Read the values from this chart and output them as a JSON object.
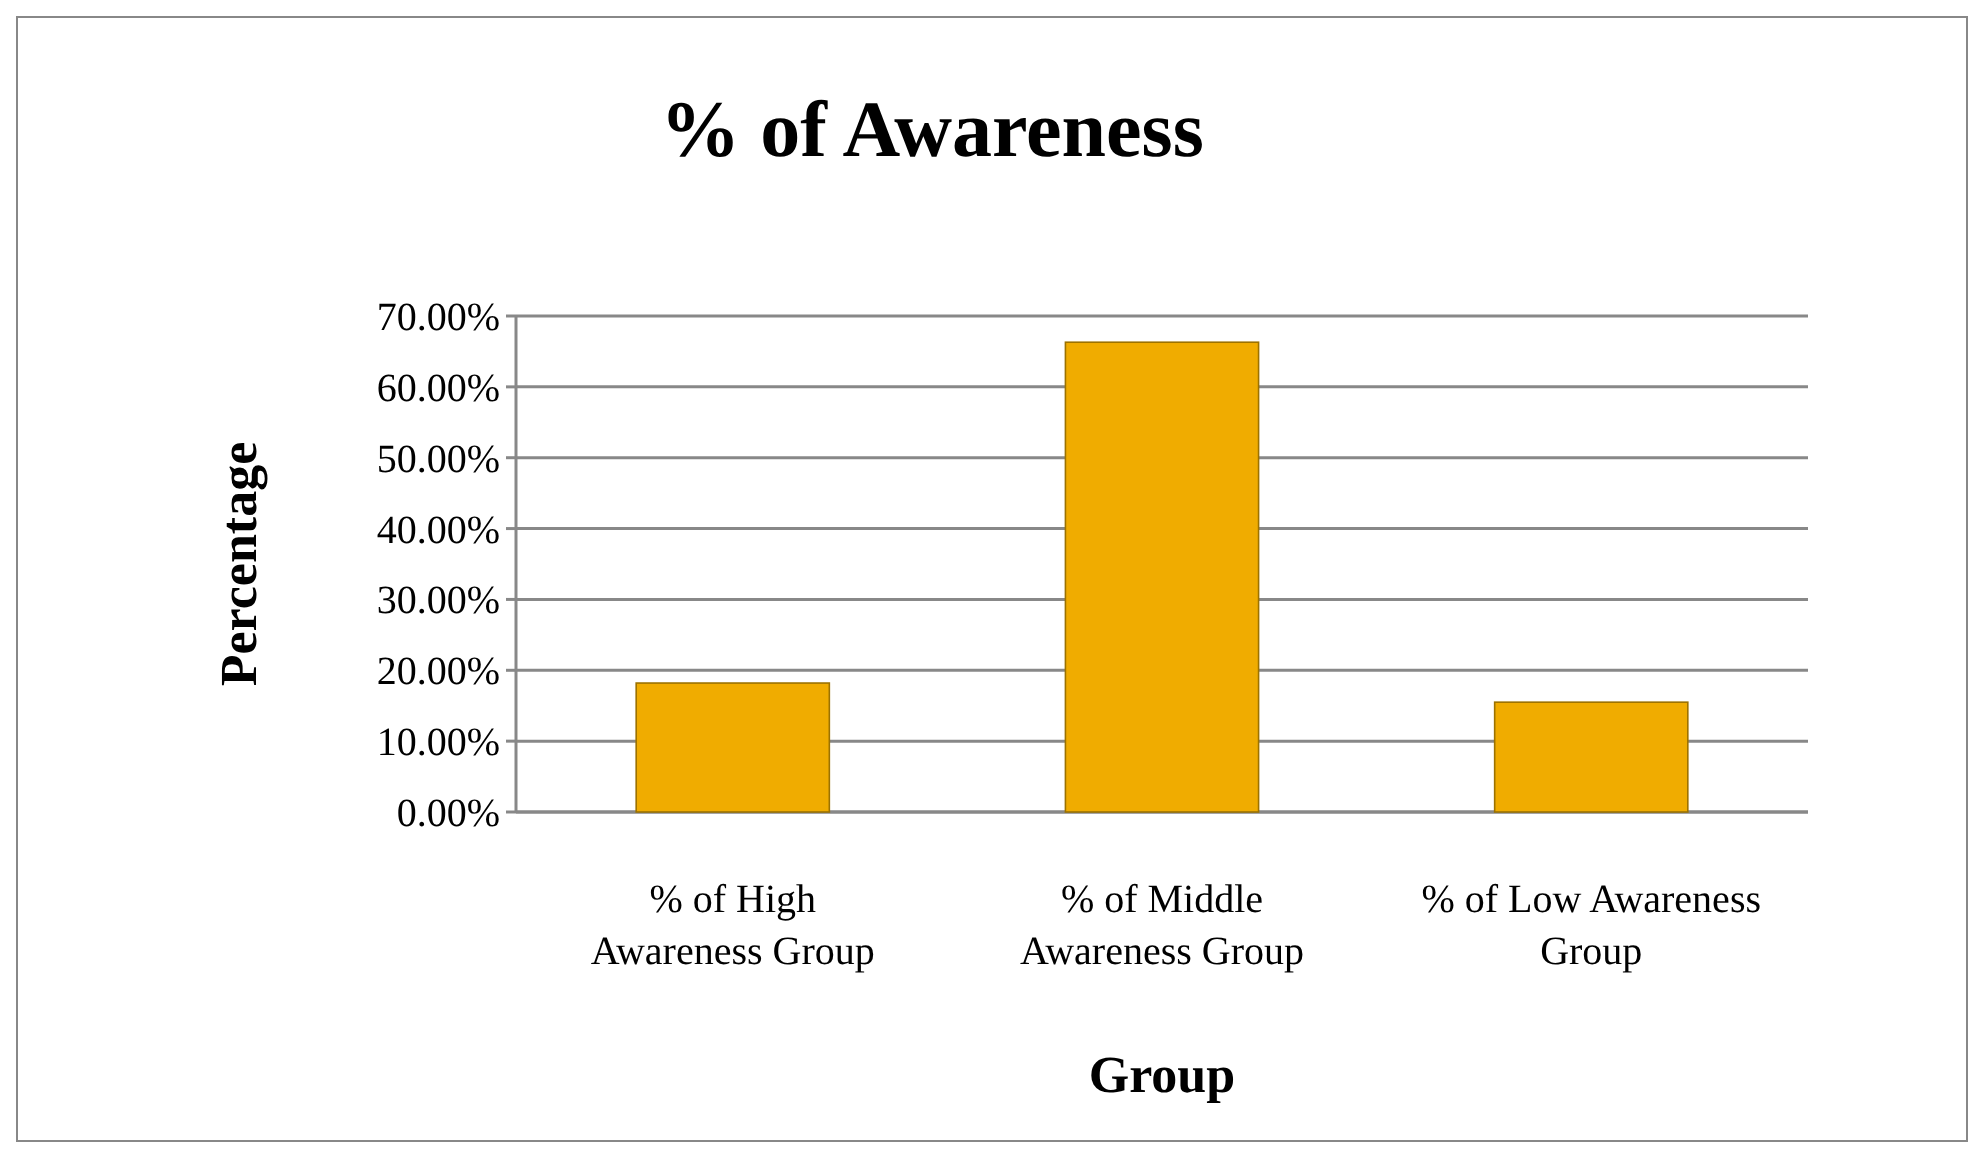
{
  "chart_data": {
    "type": "bar",
    "title": "% of Awareness",
    "xlabel": "Group",
    "ylabel": "Percentage",
    "categories": [
      "% of  High Awareness  Group",
      "% of  Middle Awareness Group",
      "% of Low Awareness Group"
    ],
    "values": [
      18.2,
      66.3,
      15.5
    ],
    "color": "#f0ac00",
    "ylim": [
      0,
      70
    ],
    "yticks": [
      {
        "value": 0,
        "label": "0.00%"
      },
      {
        "value": 10,
        "label": "10.00%"
      },
      {
        "value": 20,
        "label": "20.00%"
      },
      {
        "value": 30,
        "label": "30.00%"
      },
      {
        "value": 40,
        "label": "40.00%"
      },
      {
        "value": 50,
        "label": "50.00%"
      },
      {
        "value": 60,
        "label": "60.00%"
      },
      {
        "value": 70,
        "label": "70.00%"
      }
    ],
    "grid": true
  }
}
